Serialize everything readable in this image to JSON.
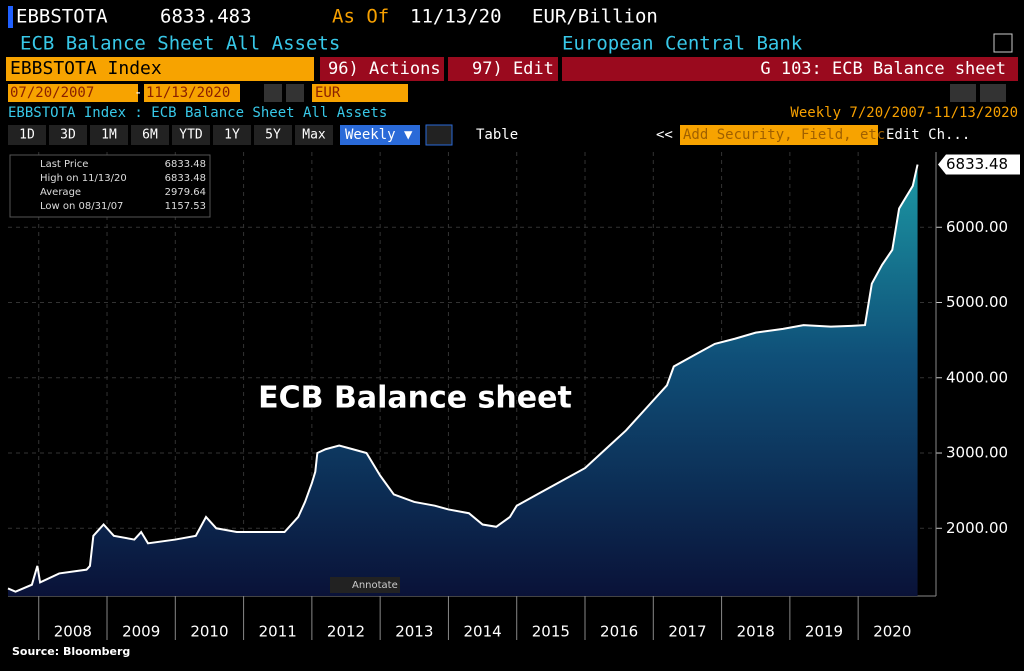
{
  "header": {
    "ticker": "EBBSTOTA",
    "price": "6833.483",
    "as_of_label": "As Of",
    "as_of_date": "11/13/20",
    "units": "EUR/Billion",
    "description": "ECB Balance Sheet All Assets",
    "source_name": "European Central Bank"
  },
  "bar": {
    "security": "EBBSTOTA Index",
    "actions": "96) Actions ▾",
    "edit": "97) Edit ▾",
    "page": "G 103: ECB Balance sheet"
  },
  "range": {
    "start": "07/20/2007",
    "dash": "-",
    "end": "11/13/2020",
    "currency": "EUR"
  },
  "subtitle": {
    "left": "EBBSTOTA Index : ECB Balance Sheet All Assets",
    "right": "Weekly  7/20/2007-11/13/2020"
  },
  "toolbar": {
    "periods": [
      "1D",
      "3D",
      "1M",
      "6M",
      "YTD",
      "1Y",
      "5Y",
      "Max"
    ],
    "frequency": "Weekly ▼",
    "table": "Table",
    "back": "<<",
    "search": "Add Security, Field, etc.",
    "edit_chart": "Edit Ch..."
  },
  "legend": [
    [
      "Last Price",
      "6833.48"
    ],
    [
      "High on 11/13/20",
      "6833.48"
    ],
    [
      "Average",
      "2979.64"
    ],
    [
      "Low on 08/31/07",
      "1157.53"
    ]
  ],
  "annotate": "Annotate",
  "footer": "Source: Bloomberg",
  "chart_data": {
    "type": "area",
    "annotation": "ECB Balance sheet",
    "color": "#ffffff",
    "x": [
      2007.55,
      2007.66,
      2007.9,
      2007.98,
      2008.02,
      2008.3,
      2008.7,
      2008.75,
      2008.8,
      2008.95,
      2009.1,
      2009.4,
      2009.5,
      2009.6,
      2010.0,
      2010.3,
      2010.45,
      2010.6,
      2010.9,
      2011.3,
      2011.6,
      2011.8,
      2011.9,
      2012.0,
      2012.05,
      2012.08,
      2012.2,
      2012.4,
      2012.6,
      2012.8,
      2013.0,
      2013.2,
      2013.5,
      2013.8,
      2014.0,
      2014.3,
      2014.5,
      2014.7,
      2014.9,
      2015.0,
      2015.3,
      2015.6,
      2016.0,
      2016.3,
      2016.6,
      2016.9,
      2017.2,
      2017.3,
      2017.6,
      2017.9,
      2018.2,
      2018.5,
      2018.9,
      2019.2,
      2019.6,
      2019.9,
      2020.1,
      2020.2,
      2020.35,
      2020.5,
      2020.6,
      2020.7,
      2020.8,
      2020.87
    ],
    "values": [
      1200,
      1158,
      1250,
      1500,
      1280,
      1400,
      1450,
      1500,
      1900,
      2050,
      1900,
      1850,
      1950,
      1800,
      1850,
      1900,
      2150,
      2000,
      1950,
      1950,
      1950,
      2150,
      2350,
      2600,
      2750,
      3000,
      3050,
      3100,
      3050,
      3000,
      2700,
      2450,
      2350,
      2300,
      2250,
      2200,
      2050,
      2020,
      2150,
      2300,
      2450,
      2600,
      2800,
      3050,
      3300,
      3600,
      3900,
      4150,
      4300,
      4450,
      4520,
      4600,
      4650,
      4700,
      4680,
      4690,
      4700,
      5250,
      5500,
      5700,
      6250,
      6400,
      6550,
      6833.48
    ],
    "xlim": [
      2007.55,
      2021.14
    ],
    "xticks": [
      2008,
      2009,
      2010,
      2011,
      2012,
      2013,
      2014,
      2015,
      2016,
      2017,
      2018,
      2019,
      2020
    ],
    "ylim": [
      1100,
      7000
    ],
    "yticks": [
      {
        "value": 2000,
        "label": "2000.00"
      },
      {
        "value": 3000,
        "label": "3000.00"
      },
      {
        "value": 4000,
        "label": "4000.00"
      },
      {
        "value": 5000,
        "label": "5000.00"
      },
      {
        "value": 6000,
        "label": "6000.00"
      }
    ],
    "grid": true
  }
}
